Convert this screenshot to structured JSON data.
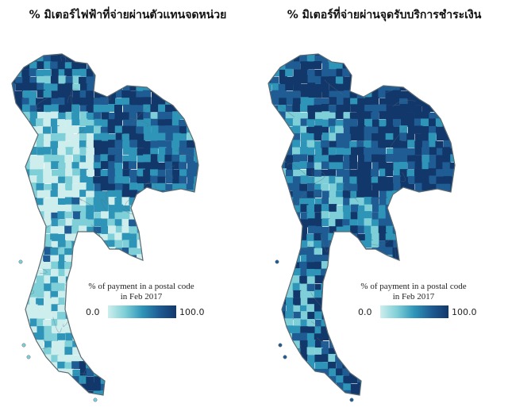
{
  "panels": [
    {
      "title": "% มิเตอร์ไฟฟ้าที่จ่ายผ่านตัวแทนจดหน่วย",
      "legend": {
        "title_line1": "% of payment in a postal code",
        "title_line2": "in Feb 2017",
        "min": "0.0",
        "max": "100.0"
      },
      "dominant_shade": "light"
    },
    {
      "title": "% มิเตอร์ที่จ่ายผ่านจุดรับบริการชำระเงิน",
      "legend": {
        "title_line1": "% of payment in a postal code",
        "title_line2": "in Feb 2017",
        "min": "0.0",
        "max": "100.0"
      },
      "dominant_shade": "dark"
    }
  ],
  "colors": {
    "scale": [
      "#cdeeed",
      "#7ecfd7",
      "#2f95b8",
      "#1e5c93",
      "#12386b"
    ],
    "border": "#5a6a72",
    "background": "#ffffff"
  }
}
